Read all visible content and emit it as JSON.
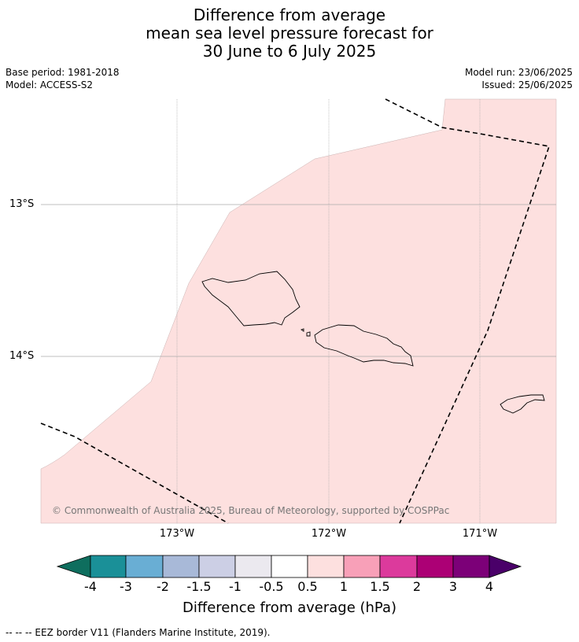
{
  "title": {
    "line1": "Difference from average",
    "line2": "mean sea level pressure forecast for",
    "line3": "30 June to 6 July 2025"
  },
  "meta": {
    "base_period": "Base period: 1981-2018",
    "model": "Model: ACCESS-S2",
    "model_run": "Model run: 23/06/2025",
    "issued": "Issued: 25/06/2025"
  },
  "map": {
    "lat_labels": [
      "13°S",
      "14°S"
    ],
    "lon_labels": [
      "173°W",
      "172°W",
      "171°W"
    ],
    "copyright": "© Commonwealth of Australia 2025, Bureau of Meteorology, supported by COSPPac",
    "fill_color": "#fde0df",
    "anomaly_class": "0.5 to 1"
  },
  "colorbar": {
    "ticks": [
      "-4",
      "-3",
      "-2",
      "-1.5",
      "-1",
      "-0.5",
      "0.5",
      "1",
      "1.5",
      "2",
      "3",
      "4"
    ],
    "colors": [
      "#0e6e5e",
      "#1a9098",
      "#69aed4",
      "#a8b9d8",
      "#cccfe5",
      "#ebe9ef",
      "#ffffff",
      "#fde0df",
      "#f8a0b8",
      "#dc3a9c",
      "#ac0075",
      "#7c0078",
      "#4a0069"
    ],
    "label": "Difference from average (hPa)"
  },
  "legend_note": "--  --  -- EEZ border V11 (Flanders Marine Institute, 2019)."
}
